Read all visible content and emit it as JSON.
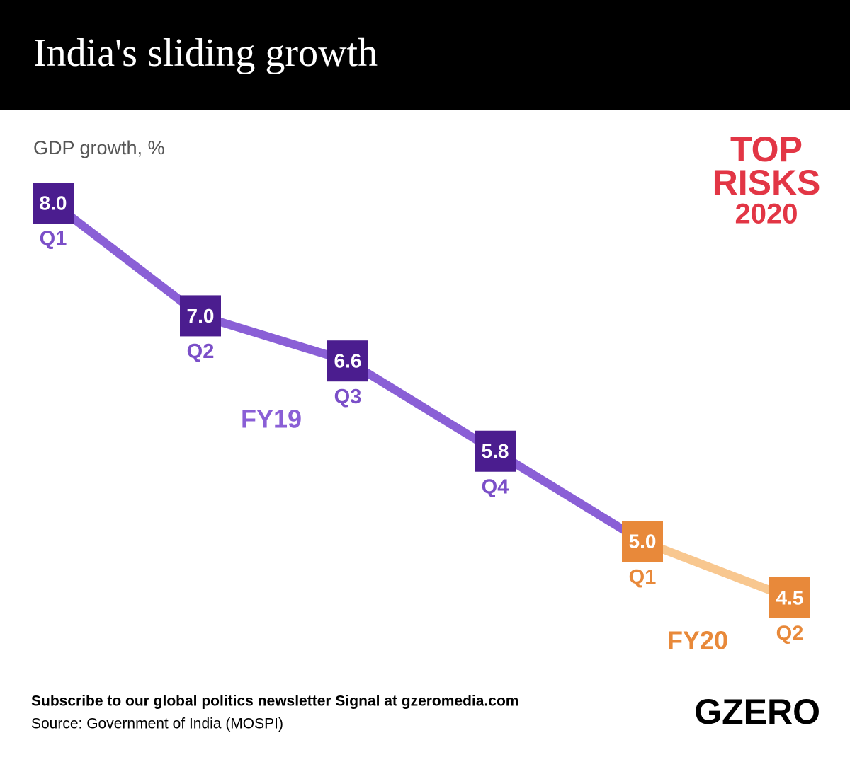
{
  "chart_data": {
    "type": "line",
    "title": "India's sliding growth",
    "subtitle": "GDP growth, %",
    "categories": [
      "Q1",
      "Q2",
      "Q3",
      "Q4",
      "Q1",
      "Q2"
    ],
    "series": [
      {
        "values": [
          8.0,
          7.0,
          6.6,
          5.8,
          5.0,
          4.5
        ],
        "value_labels": [
          "8.0",
          "7.0",
          "6.6",
          "5.8",
          "5.0",
          "4.5"
        ],
        "colors": [
          "#4b1d8f",
          "#4b1d8f",
          "#4b1d8f",
          "#4b1d8f",
          "#e8893a",
          "#e8893a"
        ],
        "label_colors": [
          "#7b4fc8",
          "#7b4fc8",
          "#7b4fc8",
          "#7b4fc8",
          "#e8893a",
          "#e8893a"
        ],
        "segment_colors": [
          "#8a5fd6",
          "#8a5fd6",
          "#8a5fd6",
          "#8a5fd6",
          "#f8c78f",
          null
        ]
      }
    ],
    "annotations": [
      {
        "text": "FY19",
        "color": "#8a5fd6"
      },
      {
        "text": "FY20",
        "color": "#e8893a"
      }
    ],
    "footer": "Subscribe to our global politics newsletter Signal at gzeromedia.com",
    "source": "Source: Government of India (MOSPI)",
    "badge": [
      "TOP",
      "RISKS",
      "2020"
    ],
    "brand": "GZERO"
  }
}
